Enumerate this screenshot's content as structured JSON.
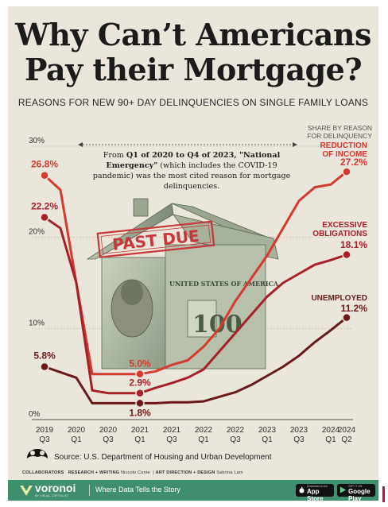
{
  "headline": {
    "line1": "Why Can’t Americans",
    "line2": "Pay their Mortgage?"
  },
  "subtitle": "REASONS FOR NEW 90+ DAY DELINQUENCIES ON SINGLE FAMILY LOANS",
  "callout": {
    "part1": "From ",
    "bold1": "Q1 of 2020 to Q4 of 2023, \"National Emergency\"",
    "part2": " (which includes the COVID-19 pandemic) was the most cited reason for mortgage delinquencies."
  },
  "share_note": {
    "line1": "SHARE BY REASON",
    "line2": "FOR DELINQUENCY"
  },
  "illustration": {
    "stamp_text": "PAST DUE",
    "bill_text": "UNITED STATES OF AMERICA",
    "bill_denomination": "100"
  },
  "chart_data": {
    "type": "line",
    "x": [
      "2019 Q3",
      "2019 Q4",
      "2020 Q1",
      "2020 Q2",
      "2020 Q3",
      "2020 Q4",
      "2021 Q1",
      "2021 Q2",
      "2021 Q3",
      "2021 Q4",
      "2022 Q1",
      "2022 Q2",
      "2022 Q3",
      "2022 Q4",
      "2023 Q1",
      "2023 Q2",
      "2023 Q3",
      "2023 Q4",
      "2024 Q1",
      "2024 Q2"
    ],
    "x_tick_labels": [
      {
        "year": "2019",
        "q": "Q3"
      },
      {
        "year": "2020",
        "q": "Q1"
      },
      {
        "year": "2020",
        "q": "Q3"
      },
      {
        "year": "2021",
        "q": "Q1"
      },
      {
        "year": "2021",
        "q": "Q3"
      },
      {
        "year": "2022",
        "q": "Q1"
      },
      {
        "year": "2022",
        "q": "Q3"
      },
      {
        "year": "2023",
        "q": "Q1"
      },
      {
        "year": "2023",
        "q": "Q3"
      },
      {
        "year": "2024",
        "q": "Q1"
      },
      {
        "year": "2024",
        "q": "Q2"
      }
    ],
    "x_tick_index": [
      0,
      2,
      4,
      6,
      8,
      10,
      12,
      14,
      16,
      18,
      19
    ],
    "ylim": [
      0,
      30
    ],
    "y_ticks": [
      0,
      10,
      20,
      30
    ],
    "y_tick_labels": [
      "0%",
      "10%",
      "20%",
      "30%"
    ],
    "grid": true,
    "series": [
      {
        "name": "REDUCTION OF INCOME",
        "name_lines": [
          "REDUCTION",
          "OF INCOME"
        ],
        "value_label": "27.2%",
        "start_label": "26.8%",
        "low_label": "5.0%",
        "low_index": 6,
        "color": "#d6392e",
        "values": [
          26.8,
          25.2,
          15.0,
          5.0,
          5.0,
          5.0,
          5.0,
          5.3,
          6.0,
          6.5,
          8.0,
          10.0,
          13.0,
          15.5,
          18.0,
          21.0,
          24.0,
          25.5,
          25.8,
          27.2
        ]
      },
      {
        "name": "EXCESSIVE OBLIGATIONS",
        "name_lines": [
          "EXCESSIVE",
          "OBLIGATIONS"
        ],
        "value_label": "18.1%",
        "start_label": "22.2%",
        "low_label": "2.9%",
        "low_index": 6,
        "color": "#a8202a",
        "values": [
          22.2,
          21.0,
          15.0,
          3.2,
          2.9,
          2.9,
          2.9,
          3.5,
          4.0,
          4.6,
          5.5,
          7.5,
          9.5,
          11.5,
          13.5,
          15.0,
          16.0,
          17.0,
          17.5,
          18.1
        ]
      },
      {
        "name": "UNEMPLOYED",
        "name_lines": [
          "UNEMPLOYED"
        ],
        "value_label": "11.2%",
        "start_label": "5.8%",
        "low_label": "1.8%",
        "low_index": 6,
        "color": "#6b1a1c",
        "values": [
          5.8,
          5.2,
          4.6,
          1.8,
          1.8,
          1.8,
          1.8,
          1.8,
          1.9,
          1.9,
          2.0,
          2.5,
          3.0,
          3.8,
          4.8,
          5.8,
          7.0,
          8.5,
          9.8,
          11.2
        ]
      }
    ]
  },
  "source": "Source: U.S. Department of Housing and Urban Development",
  "credits": {
    "collaborators": "COLLABORATORS",
    "research": "RESEARCH + WRITING",
    "research_name": "Niccolo Conte",
    "art": "ART DIRECTION + DESIGN",
    "art_name": "Sabrina Lam"
  },
  "footer": {
    "brand": "voronoi",
    "brand_sub": "BY VISUAL CAPITALIST",
    "tagline": "Where Data Tells the Story",
    "appstore_small": "Download on the",
    "appstore": "App Store",
    "gplay_small": "GET IT ON",
    "gplay": "Google Play"
  },
  "colors": {
    "background": "#ebe6dc",
    "footer": "#3f8e6e",
    "accent": "#d6392e"
  }
}
